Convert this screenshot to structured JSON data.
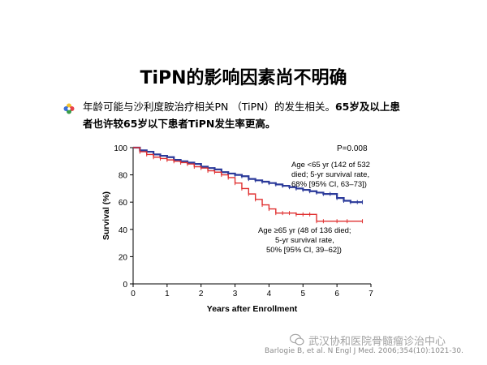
{
  "slide": {
    "title": "TiPN的影响因素尚不明确",
    "bullet_line1_a": "年龄可能与沙利度胺治疗相关PN （TiPN）的发生相关。",
    "bullet_line1_b": "65岁及以上患",
    "bullet_line2": "者也许较65岁以下患者TiPN发生率更高。",
    "citation": "Barlogie B, et al. N Engl J Med. 2006;354(10):1021-30.",
    "watermark": "武汉协和医院骨髓瘤诊治中心",
    "bullet_icon": "flower-bullet-icon",
    "watermark_icon": "wechat-icon"
  },
  "chart_data": {
    "type": "line",
    "ylabel": "Survival (%)",
    "xlabel": "Years after Enrollment",
    "xlim": [
      0,
      7
    ],
    "ylim": [
      0,
      100
    ],
    "x_ticks": [
      0,
      1,
      2,
      3,
      4,
      5,
      6,
      7
    ],
    "y_ticks": [
      0,
      20,
      40,
      60,
      80,
      100
    ],
    "p_value": "P=0.008",
    "series": [
      {
        "name": "Age <65 yr",
        "color": "#2b3a9a",
        "label_lines": [
          "Age <65 yr (142 of 532",
          "died; 5-yr survival rate,",
          "68% [95% CI, 63–73])"
        ],
        "x": [
          0,
          0.2,
          0.4,
          0.6,
          0.8,
          1.0,
          1.2,
          1.4,
          1.6,
          1.8,
          2.0,
          2.2,
          2.4,
          2.6,
          2.8,
          3.0,
          3.2,
          3.4,
          3.6,
          3.8,
          4.0,
          4.2,
          4.4,
          4.6,
          4.8,
          5.0,
          5.2,
          5.4,
          5.6,
          5.8,
          6.0,
          6.2,
          6.4,
          6.6,
          6.75
        ],
        "y": [
          100,
          98,
          97,
          95,
          94,
          93,
          91,
          90,
          89,
          88,
          86,
          85,
          84,
          82,
          81,
          80,
          79,
          77,
          76,
          75,
          74,
          73,
          72,
          71,
          70,
          69,
          68,
          67,
          66,
          66,
          63,
          61,
          60,
          60,
          60
        ]
      },
      {
        "name": "Age ≥65 yr",
        "color": "#e03131",
        "label_lines": [
          "Age ≥65 yr (48 of 136 died;",
          "5-yr survival rate,",
          "50% [95% CI, 39–62])"
        ],
        "x": [
          0,
          0.2,
          0.4,
          0.6,
          0.8,
          1.0,
          1.2,
          1.4,
          1.6,
          1.8,
          2.0,
          2.2,
          2.4,
          2.6,
          2.8,
          3.0,
          3.2,
          3.4,
          3.6,
          3.8,
          4.0,
          4.2,
          4.4,
          4.6,
          4.8,
          5.0,
          5.2,
          5.4,
          5.6,
          6.0,
          6.3,
          6.75
        ],
        "y": [
          100,
          97,
          95,
          93,
          92,
          91,
          90,
          89,
          88,
          86,
          85,
          83,
          82,
          80,
          78,
          74,
          70,
          66,
          62,
          58,
          55,
          52,
          52,
          52,
          51,
          51,
          51,
          46,
          46,
          46,
          46,
          46
        ]
      }
    ]
  }
}
